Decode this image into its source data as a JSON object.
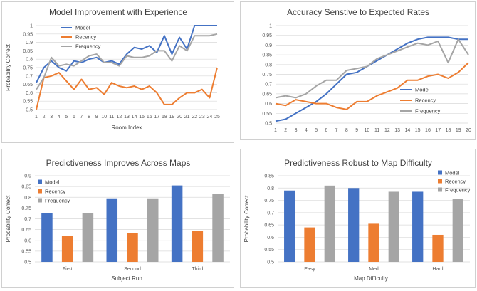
{
  "chart_data": [
    {
      "type": "line",
      "title": "Model Improvement with Experience",
      "xlabel": "Room Index",
      "ylabel": "Probability Correct",
      "x": [
        1,
        2,
        3,
        4,
        5,
        6,
        7,
        8,
        9,
        10,
        11,
        12,
        13,
        14,
        15,
        16,
        17,
        18,
        19,
        20,
        21,
        22,
        23,
        24,
        25
      ],
      "ylim": [
        0.5,
        1
      ],
      "yticks": [
        "0.5",
        "0.55",
        "0.6",
        "0.65",
        "0.7",
        "0.75",
        "0.8",
        "0.85",
        "0.9",
        "0.95",
        "1"
      ],
      "legend_position": "top-right",
      "series": [
        {
          "name": "Model",
          "color": "#4472C4",
          "values": [
            0.66,
            0.75,
            0.79,
            0.75,
            0.73,
            0.79,
            0.78,
            0.8,
            0.81,
            0.78,
            0.79,
            0.77,
            0.83,
            0.87,
            0.86,
            0.88,
            0.84,
            0.94,
            0.83,
            0.93,
            0.86,
            1.0,
            1.0,
            1.0,
            1.0
          ]
        },
        {
          "name": "Recency",
          "color": "#ED7D31",
          "values": [
            0.5,
            0.69,
            0.7,
            0.72,
            0.67,
            0.62,
            0.68,
            0.62,
            0.63,
            0.59,
            0.66,
            0.64,
            0.63,
            0.64,
            0.62,
            0.64,
            0.6,
            0.53,
            0.53,
            0.57,
            0.6,
            0.6,
            0.62,
            0.57,
            0.75
          ]
        },
        {
          "name": "Frequency",
          "color": "#A5A5A5",
          "values": [
            0.62,
            0.69,
            0.81,
            0.76,
            0.77,
            0.76,
            0.79,
            0.82,
            0.83,
            0.78,
            0.78,
            0.76,
            0.82,
            0.81,
            0.81,
            0.82,
            0.85,
            0.85,
            0.79,
            0.88,
            0.85,
            0.94,
            0.94,
            0.94,
            0.95
          ]
        }
      ]
    },
    {
      "type": "line",
      "title": "Accuracy Senstive to Expected Rates",
      "xlabel": "",
      "ylabel": "",
      "x": [
        1,
        2,
        3,
        4,
        5,
        6,
        7,
        8,
        9,
        10,
        11,
        12,
        13,
        14,
        15,
        16,
        17,
        18,
        19,
        20
      ],
      "ylim": [
        0.5,
        1
      ],
      "yticks": [
        "0.5",
        "0.55",
        "0.6",
        "0.65",
        "0.7",
        "0.75",
        "0.8",
        "0.85",
        "0.9",
        "0.95",
        "1"
      ],
      "legend_position": "right",
      "series": [
        {
          "name": "Model",
          "color": "#4472C4",
          "values": [
            0.51,
            0.52,
            0.55,
            0.58,
            0.61,
            0.65,
            0.7,
            0.75,
            0.76,
            0.79,
            0.82,
            0.85,
            0.88,
            0.91,
            0.93,
            0.94,
            0.94,
            0.94,
            0.93,
            0.93
          ]
        },
        {
          "name": "Recency",
          "color": "#ED7D31",
          "values": [
            0.6,
            0.59,
            0.62,
            0.61,
            0.6,
            0.6,
            0.58,
            0.57,
            0.61,
            0.61,
            0.64,
            0.66,
            0.68,
            0.72,
            0.72,
            0.74,
            0.75,
            0.73,
            0.76,
            0.81
          ]
        },
        {
          "name": "Frequency",
          "color": "#A5A5A5",
          "values": [
            0.63,
            0.64,
            0.63,
            0.65,
            0.69,
            0.72,
            0.72,
            0.77,
            0.78,
            0.79,
            0.83,
            0.85,
            0.87,
            0.89,
            0.91,
            0.9,
            0.92,
            0.81,
            0.93,
            0.85
          ]
        }
      ]
    },
    {
      "type": "bar",
      "title": "Predictiveness Improves Across Maps",
      "xlabel": "Subject Run",
      "ylabel": "Probability Correct",
      "categories": [
        "First",
        "Second",
        "Third"
      ],
      "ylim": [
        0.5,
        0.9
      ],
      "yticks": [
        "0.5",
        "0.55",
        "0.6",
        "0.65",
        "0.7",
        "0.75",
        "0.8",
        "0.85",
        "0.9"
      ],
      "legend_position": "top-left",
      "series": [
        {
          "name": "Model",
          "color": "#4472C4",
          "values": [
            0.725,
            0.795,
            0.855
          ]
        },
        {
          "name": "Recency",
          "color": "#ED7D31",
          "values": [
            0.62,
            0.635,
            0.645
          ]
        },
        {
          "name": "Frequency",
          "color": "#A5A5A5",
          "values": [
            0.725,
            0.795,
            0.815
          ]
        }
      ]
    },
    {
      "type": "bar",
      "title": "Predictiveness Robust to Map Difficulty",
      "xlabel": "Map Difficulty",
      "ylabel": "Probability Correct",
      "categories": [
        "Easy",
        "Med",
        "Hard"
      ],
      "ylim": [
        0.5,
        0.85
      ],
      "yticks": [
        "0.5",
        "0.55",
        "0.6",
        "0.65",
        "0.7",
        "0.75",
        "0.8",
        "0.85"
      ],
      "legend_position": "top-right",
      "series": [
        {
          "name": "Model",
          "color": "#4472C4",
          "values": [
            0.79,
            0.8,
            0.785
          ]
        },
        {
          "name": "Recency",
          "color": "#ED7D31",
          "values": [
            0.64,
            0.655,
            0.61
          ]
        },
        {
          "name": "Frequency",
          "color": "#A5A5A5",
          "values": [
            0.81,
            0.785,
            0.755
          ]
        }
      ]
    }
  ]
}
